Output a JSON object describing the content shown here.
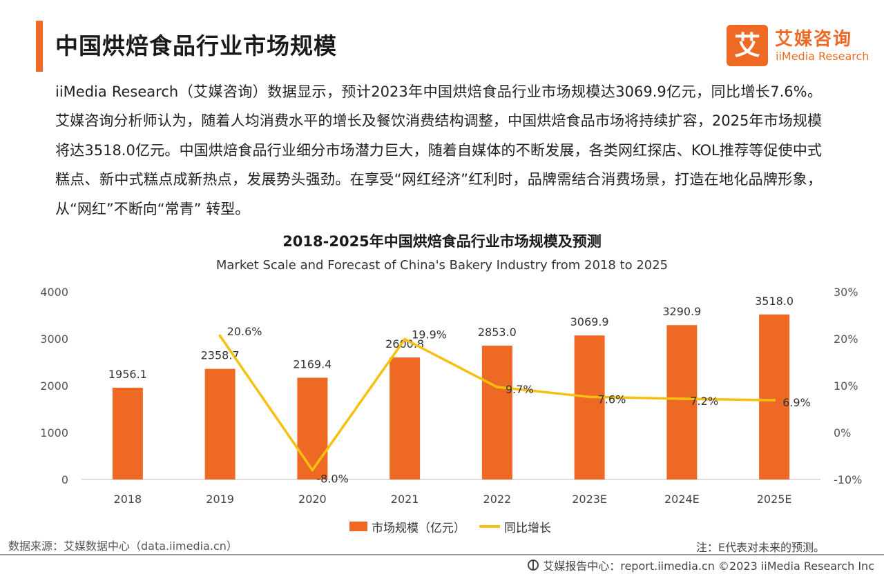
{
  "header": {
    "title": "中国烘焙食品行业市场规模",
    "logo_mark": "艾",
    "logo_cn": "艾媒咨询",
    "logo_en": "iiMedia Research"
  },
  "intro": "iiMedia Research（艾媒咨询）数据显示，预计2023年中国烘焙食品行业市场规模达3069.9亿元，同比增长7.6%。艾媒咨询分析师认为，随着人均消费水平的增长及餐饮消费结构调整，中国烘焙食品市场将持续扩容，2025年市场规模将达3518.0亿元。中国烘焙食品行业细分市场潜力巨大，随着自媒体的不断发展，各类网红探店、KOL推荐等促使中式糕点、新中式糕点成新热点，发展势头强劲。在享受“网红经济”红利时，品牌需结合消费场景，打造在地化品牌形象，从“网红”不断向“常青” 转型。",
  "chart_data": {
    "type": "bar",
    "title": "2018-2025年中国烘焙食品行业市场规模及预测",
    "subtitle": "Market Scale and Forecast of China's Bakery Industry from 2018 to 2025",
    "categories": [
      "2018",
      "2019",
      "2020",
      "2021",
      "2022",
      "2023E",
      "2024E",
      "2025E"
    ],
    "series": [
      {
        "name": "市场规模（亿元）",
        "type": "bar",
        "axis": "left",
        "color": "#ee6a24",
        "values": [
          1956.1,
          2358.7,
          2169.4,
          2600.8,
          2853.0,
          3069.9,
          3290.9,
          3518.0
        ],
        "labels": [
          "1956.1",
          "2358.7",
          "2169.4",
          "2600.8",
          "2853.0",
          "3069.9",
          "3290.9",
          "3518.0"
        ]
      },
      {
        "name": "同比增长",
        "type": "line",
        "axis": "right",
        "color": "#f5c010",
        "values": [
          null,
          20.6,
          -8.0,
          19.9,
          9.7,
          7.6,
          7.2,
          6.9
        ],
        "labels": [
          "",
          "20.6%",
          "-8.0%",
          "19.9%",
          "9.7%",
          "7.6%",
          "7.2%",
          "6.9%"
        ]
      }
    ],
    "y_left": {
      "min": 0,
      "max": 4000,
      "ticks": [
        "0",
        "1000",
        "2000",
        "3000",
        "4000"
      ]
    },
    "y_right": {
      "min": -10,
      "max": 30,
      "ticks": [
        "-10%",
        "0%",
        "10%",
        "20%",
        "30%"
      ]
    },
    "grid": false,
    "legend_position": "bottom"
  },
  "legend": {
    "bar_label": "市场规模（亿元）",
    "line_label": "同比增长"
  },
  "footer": {
    "source": "数据来源：艾媒数据中心（data.iimedia.cn）",
    "note": "注：E代表对未来的预测。",
    "copyright": "艾媒报告中心：report.iimedia.cn  ©2023  iiMedia Research Inc"
  }
}
